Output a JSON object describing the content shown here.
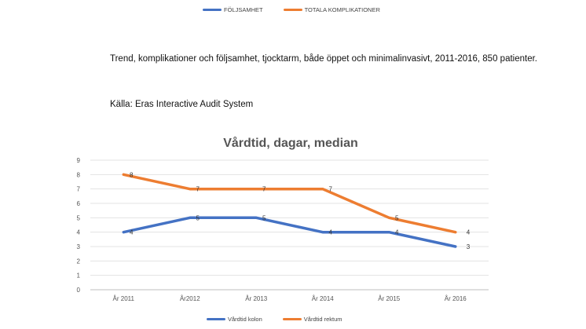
{
  "top_legend": {
    "items": [
      {
        "label": "FÖLJSAMHET",
        "color": "#4472C4"
      },
      {
        "label": "TOTALA KOMPLIKATIONER",
        "color": "#ED7D31"
      }
    ]
  },
  "caption": {
    "text": "Trend, komplikationer och följsamhet, tjocktarm, både öppet och minimalinvasivt, 2011-2016, 850 patienter.",
    "source": "Källa: Eras Interactive Audit System"
  },
  "chart_data": {
    "type": "line",
    "title": "Vårdtid, dagar, median",
    "categories": [
      "År 2011",
      "År2012",
      "År 2013",
      "År 2014",
      "År 2015",
      "År 2016"
    ],
    "series": [
      {
        "name": "Vårdtid kolon",
        "color": "#4472C4",
        "values": [
          4,
          5,
          5,
          4,
          4,
          3
        ]
      },
      {
        "name": "Vårdtid rektum",
        "color": "#ED7D31",
        "values": [
          8,
          7,
          7,
          7,
          5,
          4
        ]
      }
    ],
    "ylim": [
      0,
      9
    ],
    "yticks": [
      0,
      1,
      2,
      3,
      4,
      5,
      6,
      7,
      8,
      9
    ],
    "grid": true,
    "legend": "bottom"
  }
}
